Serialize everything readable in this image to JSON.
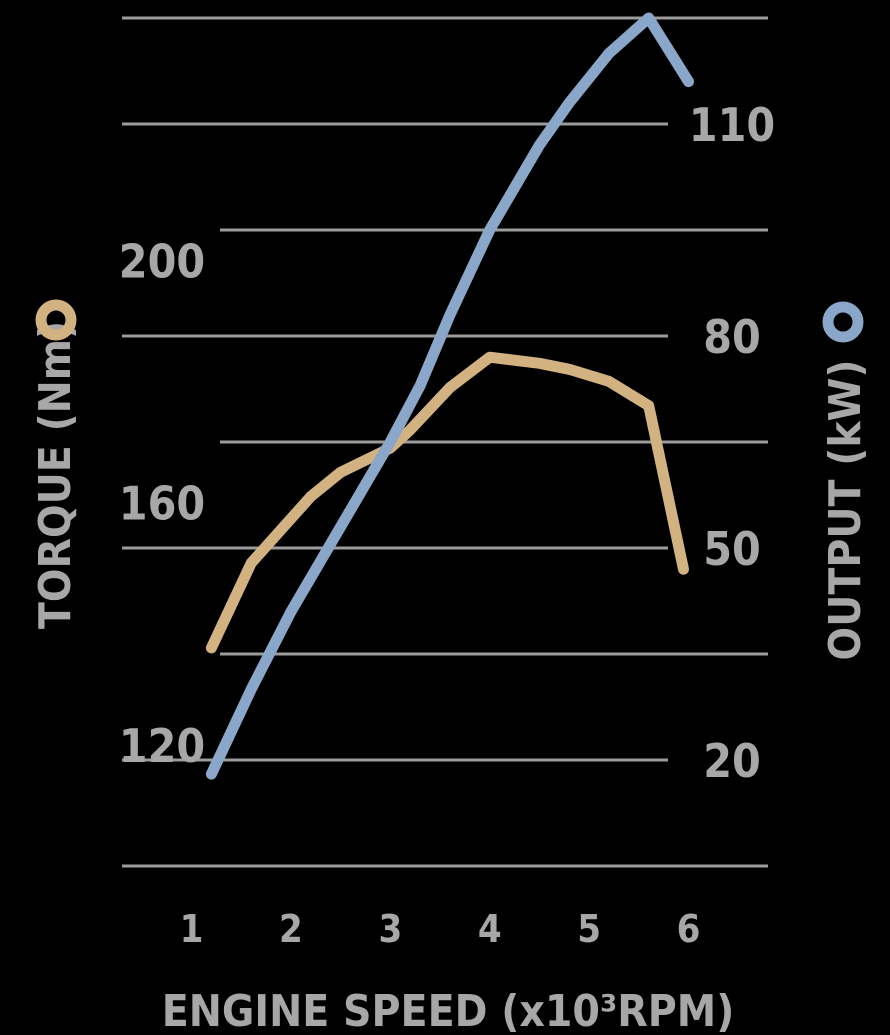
{
  "chart_data": {
    "type": "line",
    "xlabel": "ENGINE SPEED (x10³RPM)",
    "x_ticks": [
      "1",
      "2",
      "3",
      "4",
      "5",
      "6"
    ],
    "xlim": [
      0.3,
      6.8
    ],
    "y_left": {
      "label": "TORQUE (Nm)",
      "ticks": [
        120,
        160,
        200
      ],
      "ylim": [
        100,
        240
      ],
      "color": "#d3b282"
    },
    "y_right": {
      "label": "OUTPUT (kW)",
      "ticks": [
        20,
        50,
        80,
        110
      ],
      "ylim": [
        5,
        125
      ],
      "color": "#8aa6c8"
    },
    "series": [
      {
        "name": "TORQUE (Nm)",
        "axis": "left",
        "color": "#d3b282",
        "x": [
          1.2,
          1.6,
          2.2,
          2.5,
          3.0,
          3.2,
          3.6,
          4.0,
          4.5,
          4.8,
          5.2,
          5.6,
          5.95
        ],
        "y": [
          136,
          150,
          161,
          165,
          169,
          172,
          179,
          184,
          183,
          182,
          180,
          176,
          149
        ]
      },
      {
        "name": "OUTPUT (kW)",
        "axis": "right",
        "color": "#8aa6c8",
        "x": [
          1.2,
          1.6,
          2.0,
          2.5,
          3.0,
          3.3,
          3.6,
          4.0,
          4.5,
          4.8,
          5.2,
          5.6,
          6.0
        ],
        "y": [
          18,
          30,
          41,
          53,
          65,
          73,
          83,
          95,
          107,
          113,
          120,
          125,
          116
        ]
      }
    ]
  }
}
